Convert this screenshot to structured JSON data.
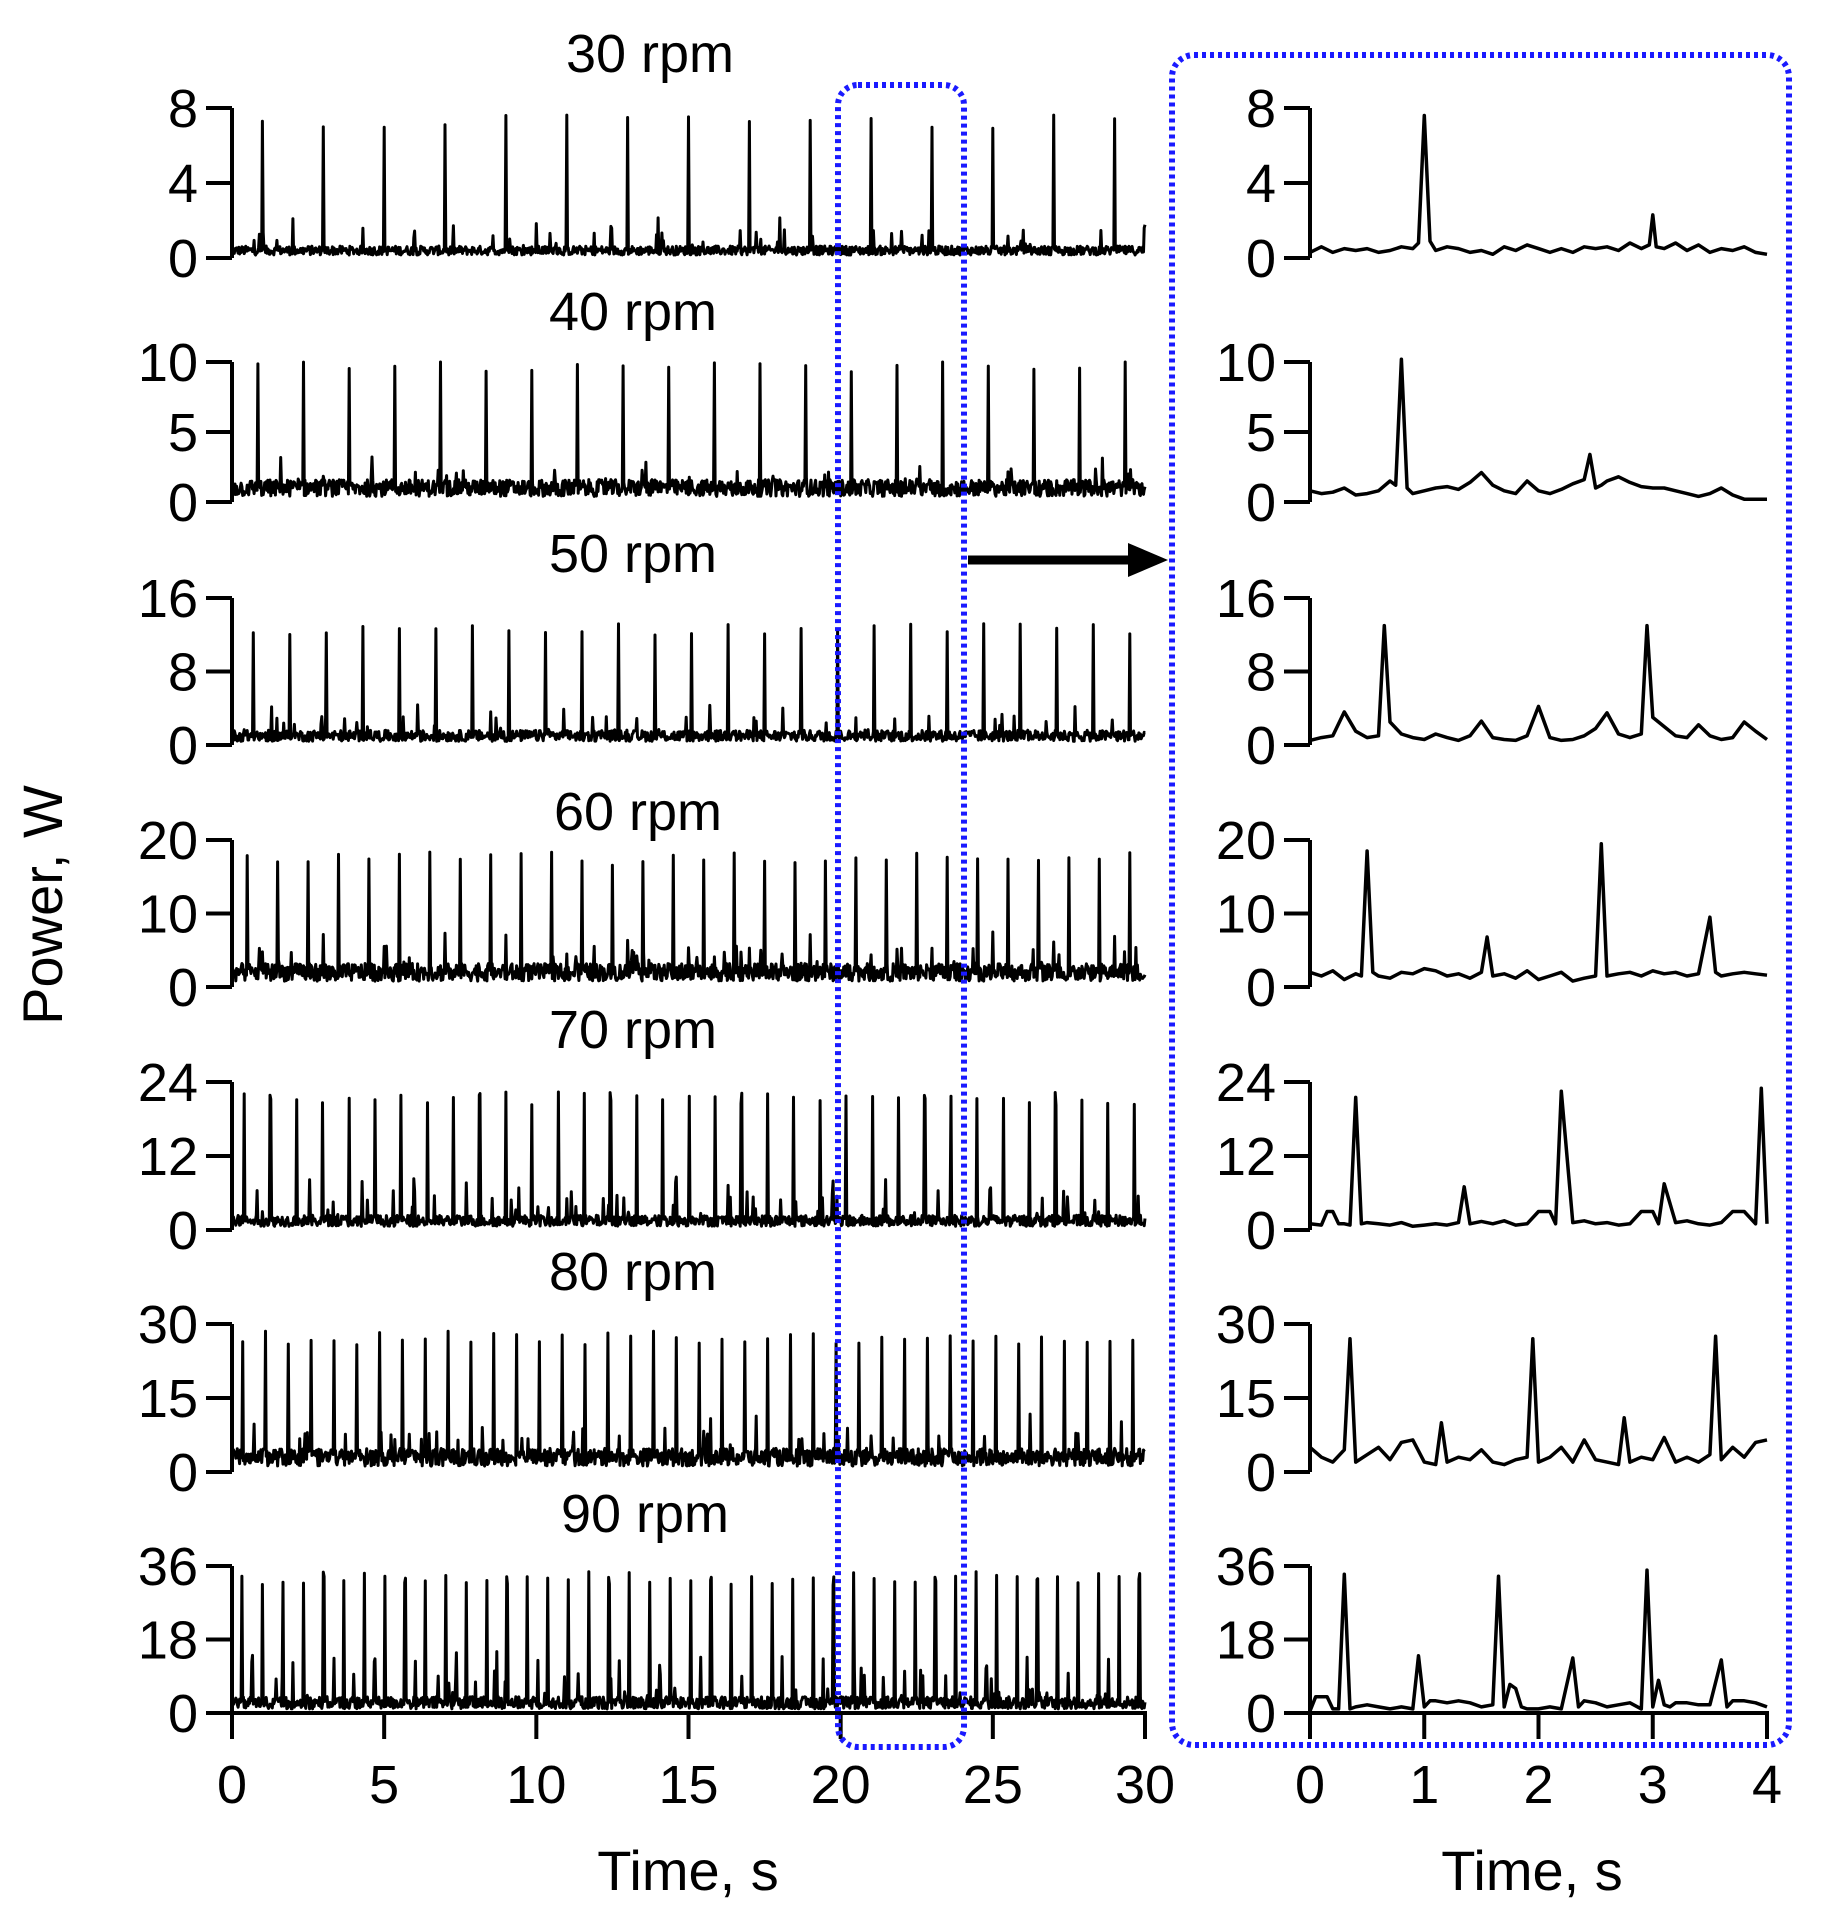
{
  "chart_data": [
    {
      "type": "line",
      "ylabel": "Power, W",
      "xlabel": "Time, s",
      "xlim": [
        0,
        30
      ],
      "xticks": [
        "0",
        "5",
        "10",
        "15",
        "20",
        "25",
        "30"
      ],
      "highlight_window": [
        20,
        24
      ],
      "panels": [
        {
          "title": "30 rpm",
          "ylim": [
            0,
            8
          ],
          "yticks": [
            "0",
            "4",
            "8"
          ],
          "peak_period_s": 2.0,
          "first_peak_s": 1.0,
          "peak_level": 7.5,
          "minor_level": 2.2,
          "baseline": 0.4
        },
        {
          "title": "40 rpm",
          "ylim": [
            0,
            10
          ],
          "yticks": [
            "0",
            "5",
            "10"
          ],
          "peak_period_s": 1.5,
          "first_peak_s": 0.85,
          "peak_level": 10,
          "minor_level": 3,
          "baseline": 1.0
        },
        {
          "title": "50 rpm",
          "ylim": [
            0,
            16
          ],
          "yticks": [
            "0",
            "8",
            "16"
          ],
          "peak_period_s": 1.2,
          "first_peak_s": 0.7,
          "peak_level": 13,
          "minor_level": 4,
          "baseline": 1.0
        },
        {
          "title": "60 rpm",
          "ylim": [
            0,
            20
          ],
          "yticks": [
            "0",
            "10",
            "20"
          ],
          "peak_period_s": 1.0,
          "first_peak_s": 0.5,
          "peak_level": 18,
          "minor_level": 7,
          "baseline": 2.0
        },
        {
          "title": "70 rpm",
          "ylim": [
            0,
            24
          ],
          "yticks": [
            "0",
            "12",
            "24"
          ],
          "peak_period_s": 0.86,
          "first_peak_s": 0.4,
          "peak_level": 22,
          "minor_level": 8,
          "baseline": 1.5
        },
        {
          "title": "80 rpm",
          "ylim": [
            0,
            30
          ],
          "yticks": [
            "0",
            "15",
            "30"
          ],
          "peak_period_s": 0.75,
          "first_peak_s": 0.35,
          "peak_level": 28,
          "minor_level": 11,
          "baseline": 3.0
        },
        {
          "title": "90 rpm",
          "ylim": [
            0,
            36
          ],
          "yticks": [
            "0",
            "18",
            "36"
          ],
          "peak_period_s": 0.67,
          "first_peak_s": 0.33,
          "peak_level": 34,
          "minor_level": 14,
          "baseline": 2.5
        }
      ]
    },
    {
      "type": "line",
      "xlabel": "Time, s",
      "xlim": [
        0,
        4
      ],
      "xticks": [
        "0",
        "1",
        "2",
        "3",
        "4"
      ],
      "panels": [
        {
          "ylim": [
            0,
            8
          ],
          "yticks": [
            "0",
            "4",
            "8"
          ],
          "x": [
            0,
            0.1,
            0.2,
            0.3,
            0.4,
            0.5,
            0.6,
            0.7,
            0.8,
            0.9,
            0.95,
            1.0,
            1.05,
            1.1,
            1.2,
            1.3,
            1.4,
            1.5,
            1.6,
            1.7,
            1.8,
            1.9,
            2.0,
            2.1,
            2.2,
            2.3,
            2.4,
            2.5,
            2.6,
            2.7,
            2.8,
            2.9,
            2.97,
            3.0,
            3.03,
            3.1,
            3.2,
            3.3,
            3.4,
            3.5,
            3.6,
            3.7,
            3.8,
            3.9,
            4.0
          ],
          "y": [
            0.3,
            0.6,
            0.3,
            0.5,
            0.4,
            0.5,
            0.3,
            0.4,
            0.6,
            0.5,
            0.8,
            7.6,
            0.9,
            0.4,
            0.6,
            0.5,
            0.3,
            0.4,
            0.2,
            0.6,
            0.4,
            0.7,
            0.5,
            0.3,
            0.5,
            0.3,
            0.6,
            0.5,
            0.6,
            0.4,
            0.8,
            0.5,
            0.7,
            2.3,
            0.6,
            0.5,
            0.8,
            0.4,
            0.7,
            0.3,
            0.5,
            0.4,
            0.6,
            0.3,
            0.2
          ]
        },
        {
          "ylim": [
            0,
            10
          ],
          "yticks": [
            "0",
            "5",
            "10"
          ],
          "x": [
            0,
            0.1,
            0.2,
            0.3,
            0.4,
            0.5,
            0.6,
            0.7,
            0.75,
            0.8,
            0.85,
            0.9,
            1.0,
            1.1,
            1.2,
            1.3,
            1.4,
            1.5,
            1.6,
            1.7,
            1.8,
            1.9,
            2.0,
            2.1,
            2.2,
            2.3,
            2.4,
            2.45,
            2.5,
            2.55,
            2.6,
            2.7,
            2.8,
            2.9,
            3.0,
            3.1,
            3.2,
            3.3,
            3.4,
            3.5,
            3.6,
            3.7,
            3.8,
            3.9,
            4.0
          ],
          "y": [
            0.8,
            0.6,
            0.7,
            1.0,
            0.5,
            0.6,
            0.8,
            1.5,
            1.2,
            10.2,
            1.0,
            0.6,
            0.8,
            1.0,
            1.1,
            0.9,
            1.4,
            2.1,
            1.2,
            0.8,
            0.6,
            1.5,
            0.8,
            0.6,
            0.9,
            1.3,
            1.6,
            3.4,
            1.0,
            1.2,
            1.5,
            1.8,
            1.4,
            1.1,
            1.0,
            1.0,
            0.8,
            0.6,
            0.4,
            0.6,
            1.0,
            0.5,
            0.2,
            0.2,
            0.2
          ]
        },
        {
          "ylim": [
            0,
            16
          ],
          "yticks": [
            "0",
            "8",
            "16"
          ],
          "x": [
            0,
            0.1,
            0.2,
            0.3,
            0.4,
            0.5,
            0.6,
            0.65,
            0.7,
            0.8,
            0.9,
            1.0,
            1.1,
            1.2,
            1.3,
            1.4,
            1.5,
            1.6,
            1.7,
            1.8,
            1.9,
            2.0,
            2.1,
            2.2,
            2.3,
            2.4,
            2.5,
            2.6,
            2.7,
            2.8,
            2.9,
            2.95,
            3.0,
            3.1,
            3.2,
            3.3,
            3.4,
            3.5,
            3.6,
            3.7,
            3.8,
            3.9,
            4.0
          ],
          "y": [
            0.5,
            0.8,
            1.0,
            3.6,
            1.5,
            0.8,
            1.0,
            13.0,
            2.5,
            1.2,
            0.8,
            0.6,
            1.2,
            0.8,
            0.5,
            1.0,
            2.6,
            0.8,
            0.6,
            0.5,
            1.0,
            4.2,
            0.8,
            0.5,
            0.6,
            1.0,
            1.8,
            3.5,
            1.2,
            0.8,
            1.2,
            13.0,
            3.0,
            2.0,
            1.0,
            0.8,
            2.2,
            1.0,
            0.6,
            0.8,
            2.5,
            1.5,
            0.6
          ]
        },
        {
          "ylim": [
            0,
            20
          ],
          "yticks": [
            "0",
            "10",
            "20"
          ],
          "x": [
            0,
            0.1,
            0.2,
            0.3,
            0.4,
            0.45,
            0.5,
            0.55,
            0.6,
            0.7,
            0.8,
            0.9,
            1.0,
            1.1,
            1.2,
            1.3,
            1.4,
            1.5,
            1.55,
            1.6,
            1.7,
            1.8,
            1.9,
            2.0,
            2.1,
            2.2,
            2.3,
            2.4,
            2.5,
            2.55,
            2.6,
            2.7,
            2.8,
            2.9,
            3.0,
            3.1,
            3.2,
            3.3,
            3.4,
            3.5,
            3.55,
            3.6,
            3.7,
            3.8,
            3.9,
            4.0
          ],
          "y": [
            2.0,
            1.5,
            2.2,
            1.0,
            1.8,
            1.5,
            18.5,
            2.0,
            1.5,
            1.2,
            2.0,
            1.8,
            2.5,
            2.2,
            1.5,
            1.8,
            1.2,
            2.0,
            6.8,
            1.5,
            1.8,
            1.2,
            2.2,
            1.0,
            1.5,
            2.0,
            0.8,
            1.2,
            1.5,
            19.5,
            1.5,
            1.8,
            2.0,
            1.5,
            2.2,
            1.8,
            2.0,
            1.5,
            1.8,
            9.5,
            2.0,
            1.5,
            1.8,
            2.0,
            1.8,
            1.6
          ]
        },
        {
          "ylim": [
            0,
            24
          ],
          "yticks": [
            "0",
            "12",
            "24"
          ],
          "x": [
            0,
            0.1,
            0.15,
            0.2,
            0.25,
            0.3,
            0.35,
            0.4,
            0.45,
            0.5,
            0.6,
            0.7,
            0.8,
            0.9,
            1.0,
            1.1,
            1.2,
            1.3,
            1.35,
            1.4,
            1.5,
            1.6,
            1.7,
            1.8,
            1.9,
            2.0,
            2.1,
            2.15,
            2.2,
            2.3,
            2.4,
            2.5,
            2.6,
            2.7,
            2.8,
            2.9,
            3.0,
            3.05,
            3.1,
            3.2,
            3.3,
            3.4,
            3.5,
            3.6,
            3.7,
            3.8,
            3.9,
            3.95,
            4.0
          ],
          "y": [
            1.0,
            0.8,
            3.0,
            3.0,
            1.0,
            1.0,
            0.8,
            21.5,
            1.0,
            1.2,
            1.0,
            0.8,
            1.2,
            0.6,
            0.8,
            1.0,
            0.8,
            1.2,
            7.0,
            1.0,
            1.4,
            1.0,
            1.5,
            0.8,
            1.0,
            3.0,
            3.0,
            1.0,
            22.5,
            1.2,
            1.5,
            1.0,
            1.2,
            0.8,
            1.0,
            3.0,
            3.0,
            1.0,
            7.5,
            1.2,
            1.5,
            1.0,
            0.8,
            1.2,
            3.0,
            3.0,
            1.0,
            23.0,
            1.0
          ]
        },
        {
          "ylim": [
            0,
            30
          ],
          "yticks": [
            "0",
            "15",
            "30"
          ],
          "x": [
            0,
            0.1,
            0.2,
            0.3,
            0.35,
            0.4,
            0.5,
            0.6,
            0.7,
            0.8,
            0.9,
            1.0,
            1.1,
            1.15,
            1.2,
            1.3,
            1.4,
            1.5,
            1.6,
            1.7,
            1.8,
            1.9,
            1.95,
            2.0,
            2.1,
            2.2,
            2.3,
            2.4,
            2.5,
            2.6,
            2.7,
            2.75,
            2.8,
            2.9,
            3.0,
            3.1,
            3.2,
            3.3,
            3.4,
            3.5,
            3.55,
            3.6,
            3.7,
            3.8,
            3.9,
            4.0
          ],
          "y": [
            5.0,
            3.0,
            2.0,
            4.5,
            27.0,
            2.0,
            3.5,
            5.0,
            2.5,
            6.0,
            6.5,
            2.0,
            1.5,
            10.0,
            2.0,
            3.0,
            2.5,
            4.5,
            2.0,
            1.5,
            2.5,
            3.0,
            27.0,
            2.0,
            3.0,
            5.0,
            2.0,
            6.5,
            2.5,
            2.0,
            1.5,
            11.0,
            2.0,
            3.0,
            2.5,
            7.0,
            2.0,
            3.0,
            2.0,
            3.5,
            27.5,
            2.5,
            5.0,
            3.0,
            6.0,
            6.5
          ]
        },
        {
          "ylim": [
            0,
            36
          ],
          "yticks": [
            "0",
            "18",
            "36"
          ],
          "x": [
            0,
            0.05,
            0.1,
            0.15,
            0.2,
            0.25,
            0.3,
            0.35,
            0.4,
            0.5,
            0.6,
            0.7,
            0.8,
            0.9,
            0.95,
            1.0,
            1.05,
            1.1,
            1.2,
            1.3,
            1.4,
            1.5,
            1.6,
            1.65,
            1.7,
            1.75,
            1.8,
            1.85,
            1.9,
            2.0,
            2.1,
            2.2,
            2.3,
            2.35,
            2.4,
            2.5,
            2.6,
            2.7,
            2.8,
            2.9,
            2.95,
            3.0,
            3.05,
            3.1,
            3.15,
            3.2,
            3.3,
            3.4,
            3.5,
            3.6,
            3.65,
            3.7,
            3.8,
            3.9,
            4.0
          ],
          "y": [
            0.5,
            4.0,
            4.0,
            4.0,
            1.0,
            1.0,
            34.0,
            1.0,
            1.5,
            2.0,
            1.5,
            1.0,
            1.5,
            1.0,
            14.0,
            1.5,
            3.0,
            3.0,
            2.5,
            3.0,
            2.5,
            1.5,
            2.0,
            33.5,
            1.5,
            7.0,
            6.0,
            1.5,
            1.0,
            1.0,
            1.5,
            1.0,
            13.5,
            1.5,
            3.0,
            2.5,
            1.5,
            2.0,
            2.5,
            1.0,
            35.0,
            1.5,
            8.0,
            2.0,
            1.5,
            2.5,
            2.5,
            2.0,
            2.0,
            13.0,
            1.5,
            3.0,
            3.0,
            2.5,
            1.5
          ]
        }
      ]
    }
  ]
}
